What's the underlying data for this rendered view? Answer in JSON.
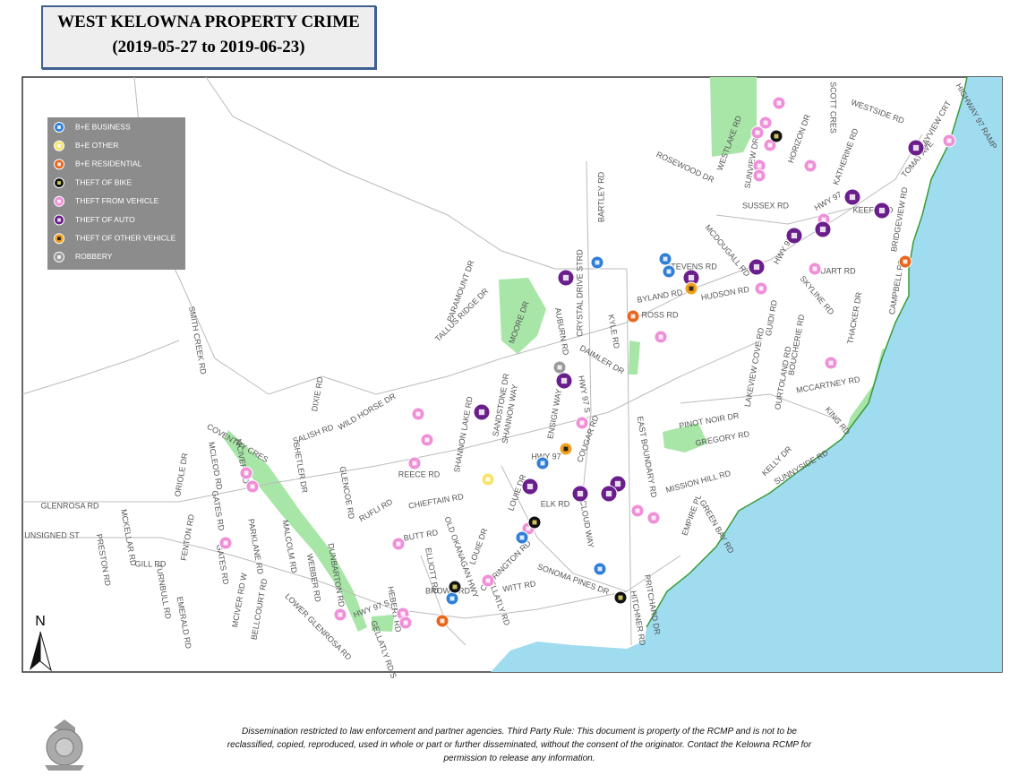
{
  "header": {
    "title_lines": [
      "WEST KELOWNA PROPERTY CRIME",
      "(2019-05-27 to 2019-06-23)"
    ]
  },
  "legend": {
    "items": [
      {
        "label": "B+E BUSINESS",
        "color": "#2f7fd6"
      },
      {
        "label": "B+E OTHER",
        "color": "#f5e36a"
      },
      {
        "label": "B+E RESIDENTIAL",
        "color": "#e8661c"
      },
      {
        "label": "THEFT OF BIKE",
        "color": "#111111"
      },
      {
        "label": "THEFT FROM VEHICLE",
        "color": "#ef8fd8"
      },
      {
        "label": "THEFT OF AUTO",
        "color": "#6a1e8c"
      },
      {
        "label": "THEFT OF OTHER VEHICLE",
        "color": "#f0a020"
      },
      {
        "label": "ROBBERY",
        "color": "#9a9a9a"
      }
    ]
  },
  "map": {
    "north": "N",
    "street_labels": [
      "WESTSIDE RD",
      "BAYVIEW CRT",
      "HIGHWAY 97 RAMP",
      "SCOTT CRES",
      "HORIZON DR",
      "KATHERINE RD",
      "WESTLAKE RD",
      "SUNVIEW DR",
      "ROSEWOOD DR",
      "TOMAT AVE",
      "SUSSEX RD",
      "HWY 97",
      "KEEFE RD",
      "BRIDGEVIEW RD",
      "MCDOUGALL RD",
      "HWY 97",
      "STEVENS RD",
      "STUART RD",
      "CAMPBELL RD",
      "BYLAND RD",
      "HUDSON RD",
      "SKYLINE RD",
      "ROSS RD",
      "GUIDI RD",
      "THACKER DR",
      "BOUCHERIE RD",
      "LAKEVIEW COVE RD",
      "OURTOLAND RD",
      "MCCARTNEY RD",
      "KING RD",
      "PINOT NOIR DR",
      "GREGORY RD",
      "KELLY DR",
      "SUNNYSIDE RD",
      "MISSION HILL RD",
      "EMPIRE PL",
      "GREEN BAY RD",
      "EAST BOUNDARY RD",
      "PRITCHARD DR",
      "HITCHNER RD",
      "SONOMA PINES DR",
      "ELK RD",
      "CLOUD WAY",
      "COUGAR RD",
      "HWY 97 S",
      "DAIMLER DR",
      "KYLE RD",
      "CRYSTAL DRIVE STRD",
      "BARTLEY RD",
      "AUBURN RD",
      "ENSIGN WAY",
      "SHANNON WAY",
      "SANDSTONE DR",
      "SHANNON LAKE RD",
      "MOORE DR",
      "PARAMOUNT DR",
      "TALLUS RIDGE DR",
      "DIXIE RD",
      "WILD HORSE DR",
      "SALISH RD",
      "SHETLER DR",
      "REECE RD",
      "CHIEFTAIN RD",
      "RUFLI RD",
      "GLENCOE RD",
      "BUTT RD",
      "LOUIE DR",
      "LOUIE DR",
      "OLD OKANAGAN HWY",
      "CARRINGTON RD",
      "GELLATLY RD",
      "WITT RD",
      "ELLIOTT RD",
      "BROWN RD",
      "HWY 97 S",
      "HEBERT RD",
      "GELLATLY RD S",
      "DUNBARTON RD",
      "LOWER GLENROSA RD",
      "WEBBER RD",
      "MALCOLM RD",
      "BELLCOURT RD",
      "PARKLANE RD",
      "MCIVER RD W",
      "GATES RD",
      "GATES RD",
      "MCLEOD RD",
      "MCIVER RD",
      "COVENTRY CRES",
      "ORIOLE DR",
      "FENTON RD",
      "GLENROSA RD",
      "MCKELLAR RD",
      "UNSIGNED ST",
      "PRESTON RD",
      "GILL RD",
      "TURNBULL RD",
      "EMERALD RD",
      "SMITH CREEK RD",
      "HWY 97"
    ]
  },
  "footer": {
    "lines": [
      "Dissemination restricted to law enforcement and partner agencies.  Third Party Rule:  This document is property of the RCMP and is not to be",
      "reclassified, copied, reproduced, used in whole or part or further disseminated, without the consent of the originator.  Contact the Kelowna RCMP for",
      "permission to release any information."
    ]
  }
}
